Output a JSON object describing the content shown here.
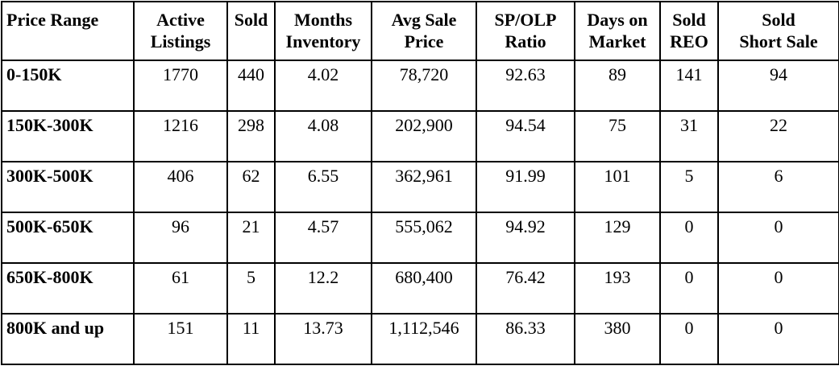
{
  "columns": [
    {
      "line1": "Price Range",
      "line2": ""
    },
    {
      "line1": "Active",
      "line2": "Listings"
    },
    {
      "line1": "Sold",
      "line2": ""
    },
    {
      "line1": "Months",
      "line2": "Inventory"
    },
    {
      "line1": "Avg Sale",
      "line2": "Price"
    },
    {
      "line1": "SP/OLP",
      "line2": "Ratio"
    },
    {
      "line1": "Days on",
      "line2": "Market"
    },
    {
      "line1": "Sold",
      "line2": "REO"
    },
    {
      "line1": "Sold",
      "line2": "Short Sale"
    }
  ],
  "rows": [
    [
      "0-150K",
      "1770",
      "440",
      "4.02",
      "78,720",
      "92.63",
      "89",
      "141",
      "94"
    ],
    [
      "150K-300K",
      "1216",
      "298",
      "4.08",
      "202,900",
      "94.54",
      "75",
      "31",
      "22"
    ],
    [
      "300K-500K",
      "406",
      "62",
      "6.55",
      "362,961",
      "91.99",
      "101",
      "5",
      "6"
    ],
    [
      "500K-650K",
      "96",
      "21",
      "4.57",
      "555,062",
      "94.92",
      "129",
      "0",
      "0"
    ],
    [
      "650K-800K",
      "61",
      "5",
      "12.2",
      "680,400",
      "76.42",
      "193",
      "0",
      "0"
    ],
    [
      "800K and up",
      "151",
      "11",
      "13.73",
      "1,112,546",
      "86.33",
      "380",
      "0",
      "0"
    ]
  ]
}
